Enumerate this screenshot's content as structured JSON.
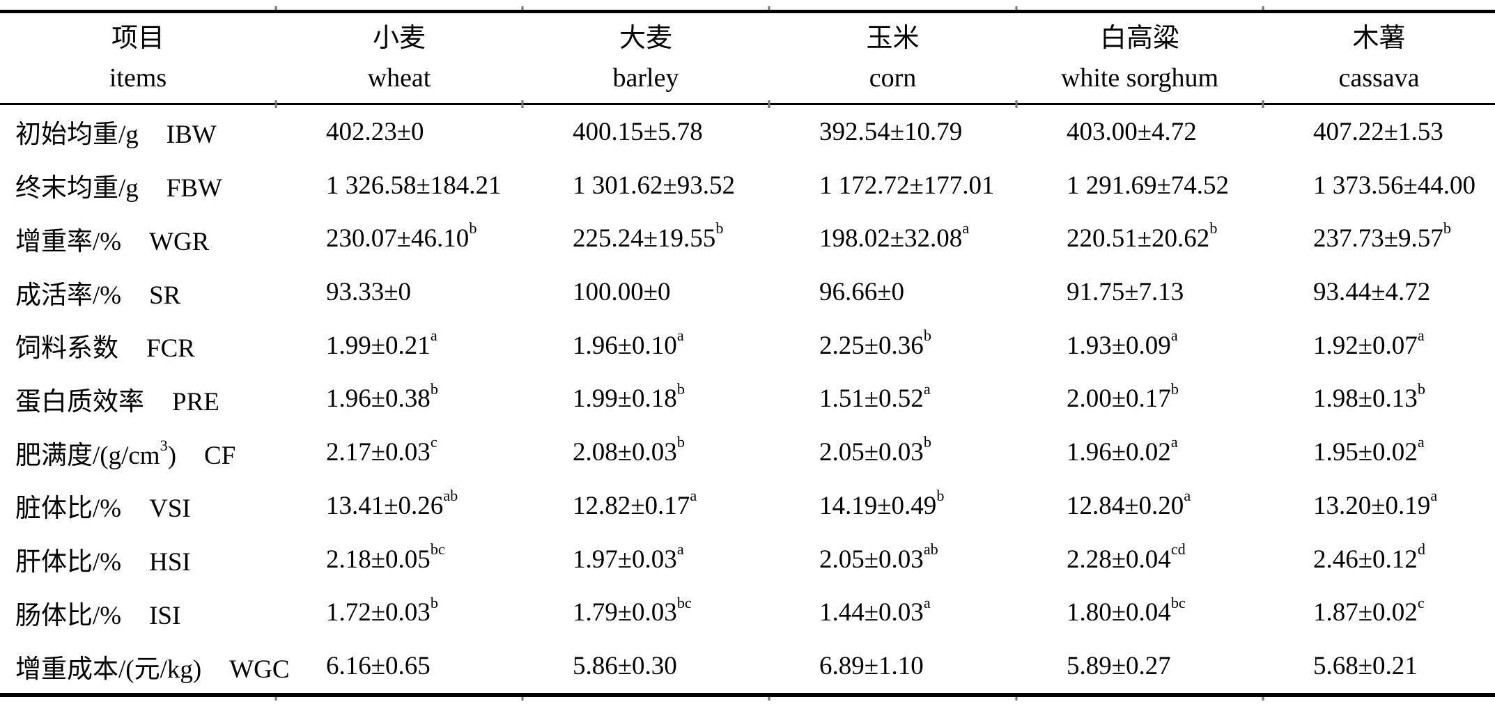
{
  "colors": {
    "background": "#ffffff",
    "text": "#000000",
    "rule": "#000000"
  },
  "table": {
    "columns": [
      {
        "zh": "项目",
        "en": "items"
      },
      {
        "zh": "小麦",
        "en": "wheat"
      },
      {
        "zh": "大麦",
        "en": "barley"
      },
      {
        "zh": "玉米",
        "en": "corn"
      },
      {
        "zh": "白高粱",
        "en": "white sorghum"
      },
      {
        "zh": "木薯",
        "en": "cassava"
      }
    ],
    "rows": [
      {
        "label_zh": "初始均重/g",
        "label_en": "IBW",
        "values": [
          "402.23±0",
          "400.15±5.78",
          "392.54±10.79",
          "403.00±4.72",
          "407.22±1.53"
        ]
      },
      {
        "label_zh": "终末均重/g",
        "label_en": "FBW",
        "values": [
          "1 326.58±184.21",
          "1 301.62±93.52",
          "1 172.72±177.01",
          "1 291.69±74.52",
          "1 373.56±44.00"
        ]
      },
      {
        "label_zh": "增重率/%",
        "label_en": "WGR",
        "values": [
          "230.07±46.10^{b}",
          "225.24±19.55^{b}",
          "198.02±32.08^{a}",
          "220.51±20.62^{b}",
          "237.73±9.57^{b}"
        ]
      },
      {
        "label_zh": "成活率/%",
        "label_en": "SR",
        "values": [
          "93.33±0",
          "100.00±0",
          "96.66±0",
          "91.75±7.13",
          "93.44±4.72"
        ]
      },
      {
        "label_zh": "饲料系数",
        "label_en": "FCR",
        "values": [
          "1.99±0.21^{a}",
          "1.96±0.10^{a}",
          "2.25±0.36^{b}",
          "1.93±0.09^{a}",
          "1.92±0.07^{a}"
        ]
      },
      {
        "label_zh": "蛋白质效率",
        "label_en": "PRE",
        "values": [
          "1.96±0.38^{b}",
          "1.99±0.18^{b}",
          "1.51±0.52^{a}",
          "2.00±0.17^{b}",
          "1.98±0.13^{b}"
        ]
      },
      {
        "label_zh": "肥满度/(g/cm^{3})",
        "label_en": "CF",
        "values": [
          "2.17±0.03^{c}",
          "2.08±0.03^{b}",
          "2.05±0.03^{b}",
          "1.96±0.02^{a}",
          "1.95±0.02^{a}"
        ]
      },
      {
        "label_zh": "脏体比/%",
        "label_en": "VSI",
        "values": [
          "13.41±0.26^{ab}",
          "12.82±0.17^{a}",
          "14.19±0.49^{b}",
          "12.84±0.20^{a}",
          "13.20±0.19^{a}"
        ]
      },
      {
        "label_zh": "肝体比/%",
        "label_en": "HSI",
        "values": [
          "2.18±0.05^{bc}",
          "1.97±0.03^{a}",
          "2.05±0.03^{ab}",
          "2.28±0.04^{cd}",
          "2.46±0.12^{d}"
        ]
      },
      {
        "label_zh": "肠体比/%",
        "label_en": "ISI",
        "values": [
          "1.72±0.03^{b}",
          "1.79±0.03^{bc}",
          "1.44±0.03^{a}",
          "1.80±0.04^{bc}",
          "1.87±0.02^{c}"
        ]
      },
      {
        "label_zh": "增重成本/(元/kg)",
        "label_en": "WGC",
        "values": [
          "6.16±0.65",
          "5.86±0.30",
          "6.89±1.10",
          "5.89±0.27",
          "5.68±0.21"
        ]
      }
    ]
  }
}
